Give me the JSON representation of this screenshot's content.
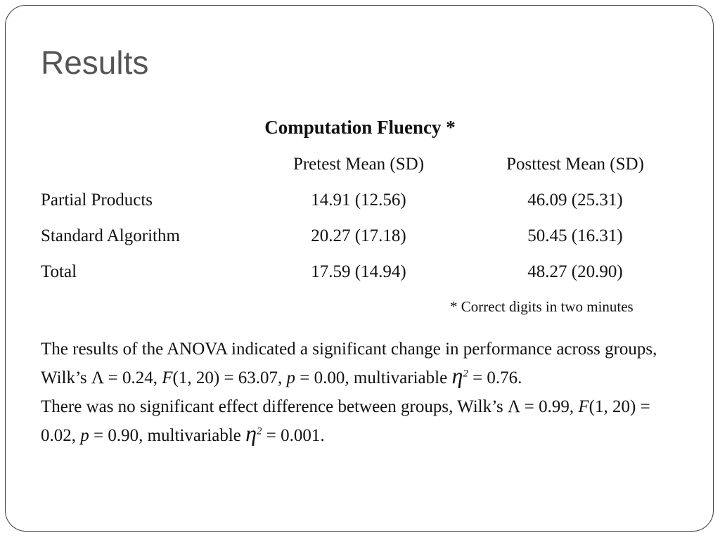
{
  "slide": {
    "title": "Results"
  },
  "table": {
    "title": "Computation Fluency *",
    "headers": [
      "Pretest Mean (SD)",
      "Posttest Mean (SD)"
    ],
    "rows": [
      {
        "label": "Partial Products",
        "pretest": "14.91 (12.56)",
        "posttest": "46.09 (25.31)"
      },
      {
        "label": "Standard Algorithm",
        "pretest": "20.27 (17.18)",
        "posttest": "50.45 (16.31)"
      },
      {
        "label": "Total",
        "pretest": "17.59 (14.94)",
        "posttest": "48.27 (20.90)"
      }
    ],
    "footnote": "* Correct digits in two minutes"
  },
  "paragraph1": {
    "s1": "The results of the ANOVA indicated a significant change in performance across groups, Wilk’s ",
    "lambda": "Λ",
    "s2": " = 0.24, ",
    "f": "F",
    "s3": "(1, 20) = 63.07, ",
    "p": "p",
    "s4": " = 0.00, multivariable ",
    "eta": "η",
    "sup": "2",
    "s5": " = 0.76."
  },
  "paragraph2": {
    "s1": "There was no significant effect difference between groups, Wilk’s ",
    "lambda": "Λ",
    "s2": " = 0.99, ",
    "f": "F",
    "s3": "(1, 20) = 0.02, ",
    "p": "p",
    "s4": " = 0.90, multivariable ",
    "eta": "η",
    "sup": "2",
    "s5": " = 0.001."
  }
}
